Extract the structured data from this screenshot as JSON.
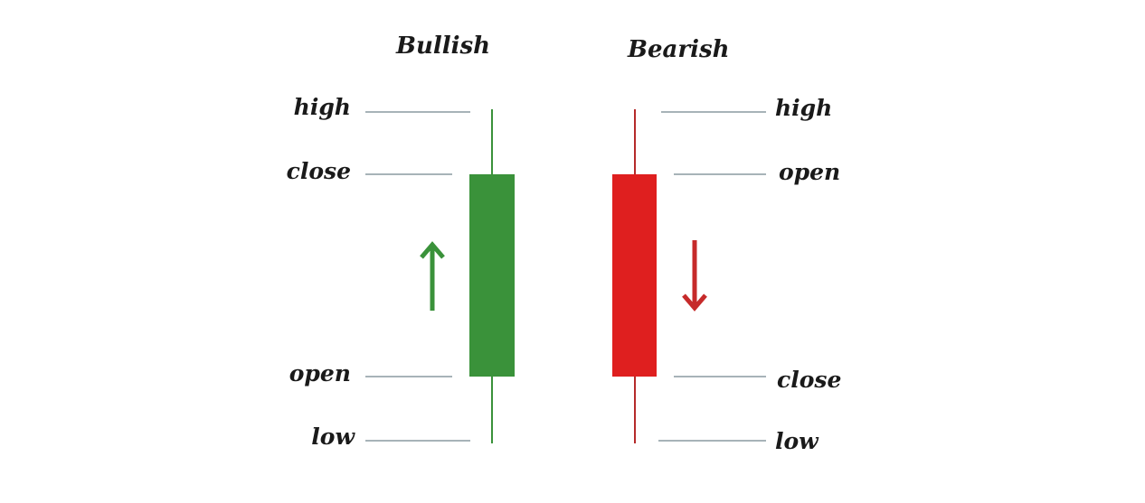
{
  "bullish": {
    "title": "Bullish",
    "labels": {
      "high": "high",
      "close": "close",
      "open": "open",
      "low": "low"
    },
    "body_color": "#3a923a",
    "direction": "up"
  },
  "bearish": {
    "title": "Bearish",
    "labels": {
      "high": "high",
      "open": "open",
      "close": "close",
      "low": "low"
    },
    "body_color": "#df1f1f",
    "direction": "down"
  },
  "colors": {
    "guide_line": "#8a9aa0",
    "text": "#1a1a1a"
  }
}
